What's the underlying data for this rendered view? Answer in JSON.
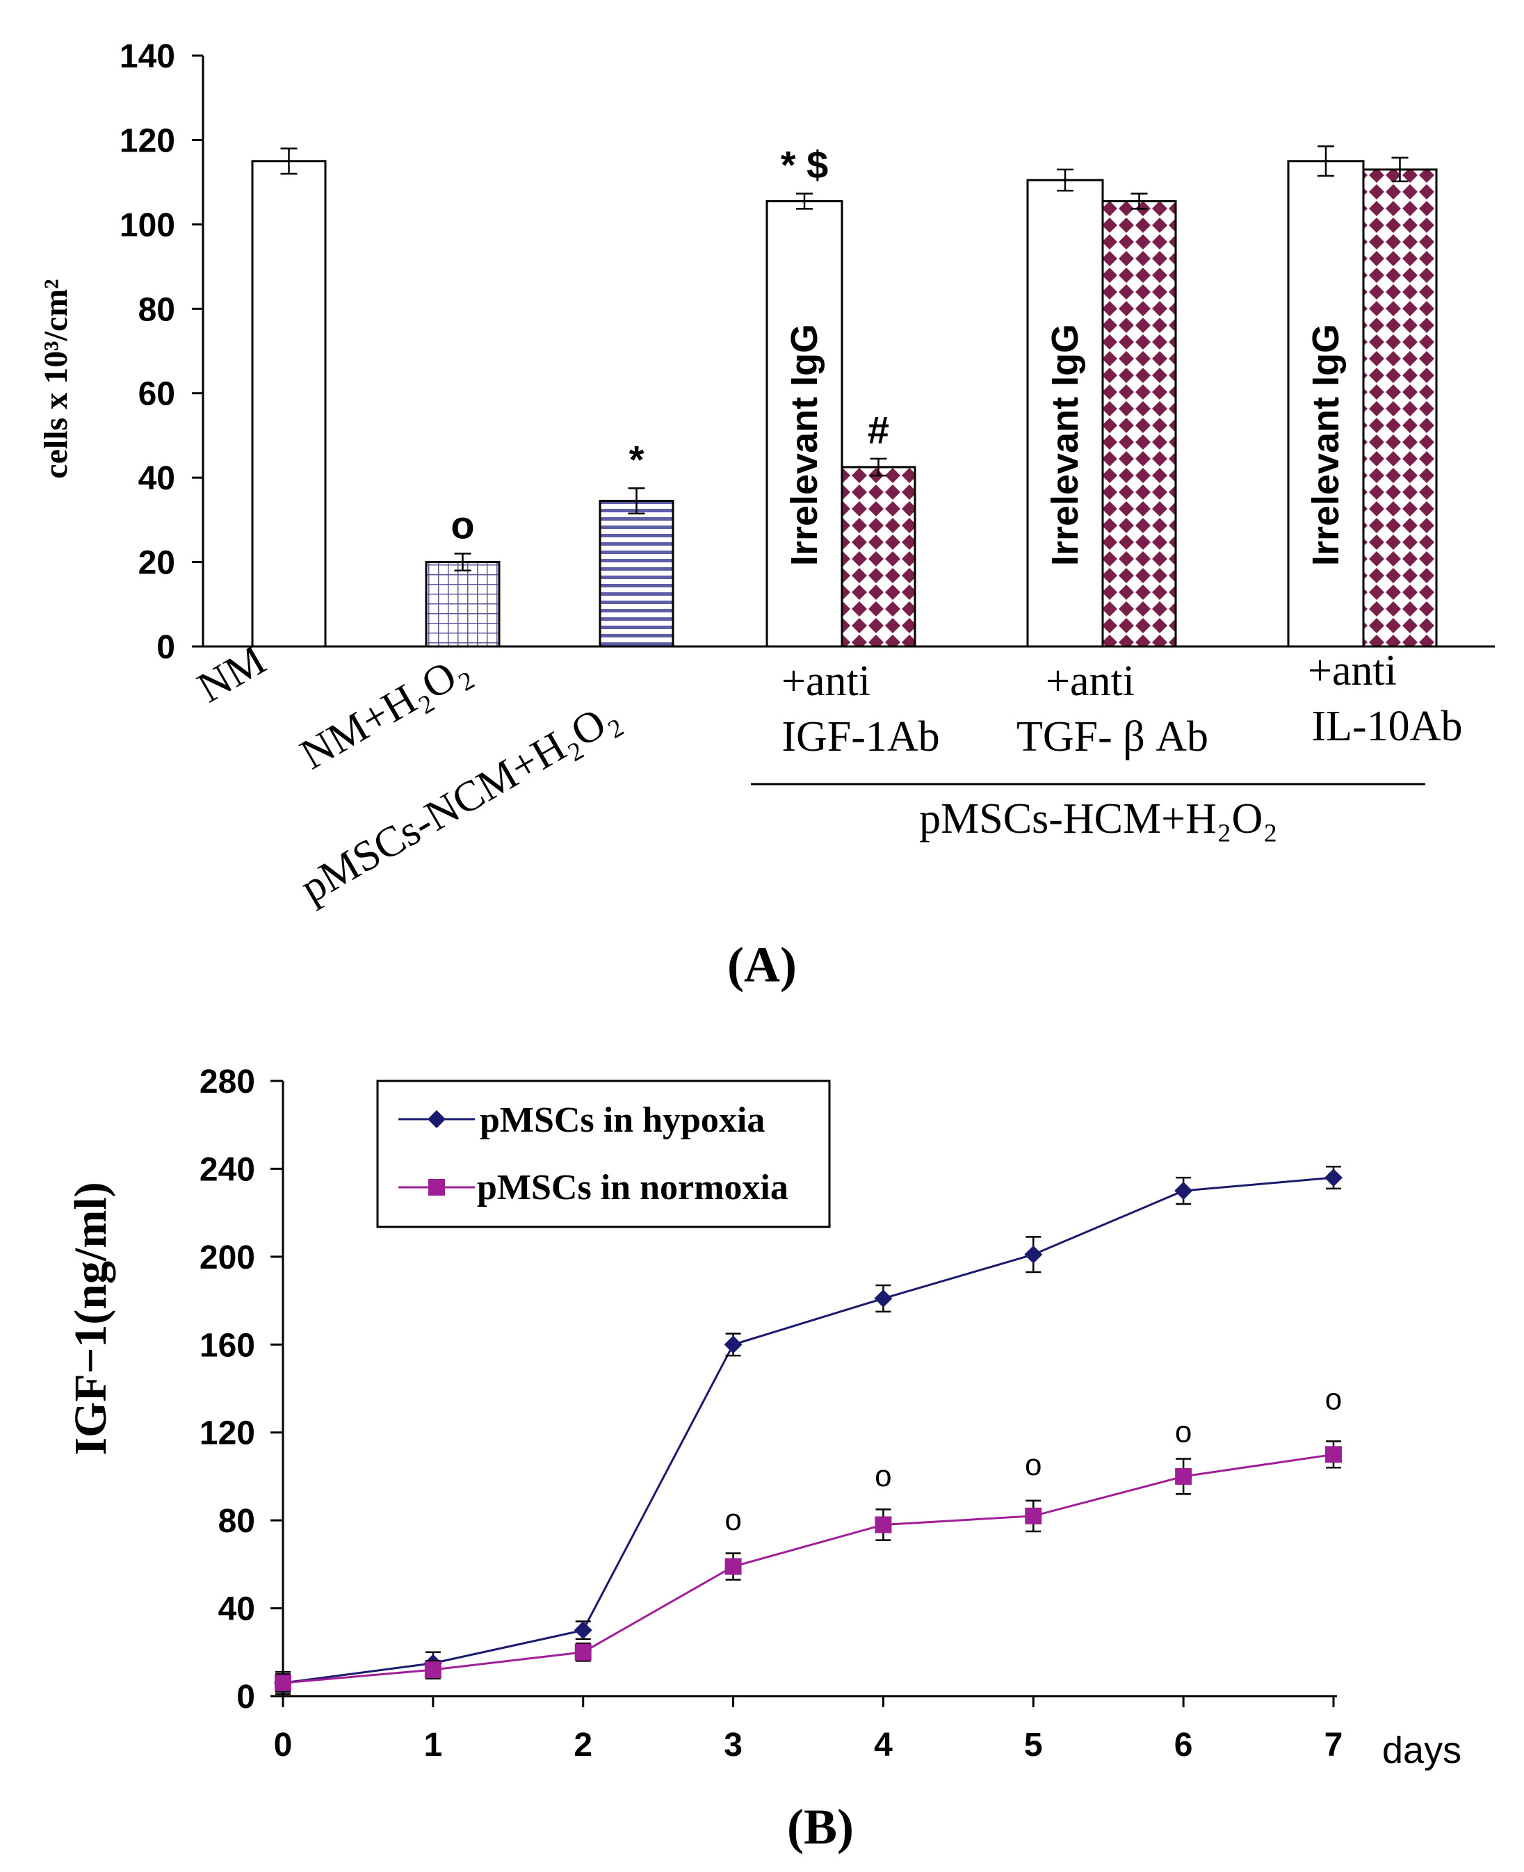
{
  "chart_data": [
    {
      "panel": "A",
      "type": "bar",
      "panel_label": "(A)",
      "ylabel": "cells x 10³/cm²",
      "ylim": [
        0,
        140
      ],
      "yticks": [
        0,
        20,
        40,
        60,
        80,
        100,
        120,
        140
      ],
      "bars": [
        {
          "category": "NM",
          "value": 115,
          "error": 3,
          "pattern": "open",
          "annotation": ""
        },
        {
          "category": "NM+H₂O₂",
          "value": 20,
          "error": 2,
          "pattern": "grid",
          "annotation": "o"
        },
        {
          "category": "pMSCs-NCM+H₂O₂",
          "value": 34.5,
          "error": 3,
          "pattern": "stripes",
          "annotation": "*"
        }
      ],
      "groups": [
        {
          "label_line1": "+anti",
          "label_line2": "IGF-1Ab",
          "igg": {
            "label": "Irrelevant IgG",
            "value": 105.5,
            "error": 1.8,
            "annotation": "* $"
          },
          "antibody": {
            "value": 42.5,
            "error": 2,
            "annotation": "#"
          }
        },
        {
          "label_line1": "+anti",
          "label_line2": "TGF- β Ab",
          "igg": {
            "label": "Irrelevant IgG",
            "value": 110.5,
            "error": 2.5,
            "annotation": ""
          },
          "antibody": {
            "value": 105.5,
            "error": 1.8,
            "annotation": ""
          }
        },
        {
          "label_line1": "+anti",
          "label_line2": "IL-10Ab",
          "igg": {
            "label": "Irrelevant IgG",
            "value": 115,
            "error": 3.5,
            "annotation": ""
          },
          "antibody": {
            "value": 113,
            "error": 2.8,
            "annotation": ""
          }
        }
      ],
      "group_bracket_label": "pMSCs-HCM+H₂O₂",
      "colors": {
        "antibody_fill": "#7a1f4a"
      }
    },
    {
      "panel": "B",
      "type": "line",
      "panel_label": "(B)",
      "ylabel": "IGF−1(ng/ml)",
      "xlabel": "days",
      "x": [
        0,
        1,
        2,
        3,
        4,
        5,
        6,
        7
      ],
      "ylim": [
        0,
        280
      ],
      "yticks": [
        0,
        40,
        80,
        120,
        160,
        200,
        240,
        280
      ],
      "series": [
        {
          "name": "pMSCs in hypoxia",
          "color": "#1a1a6e",
          "marker": "diamond",
          "values": [
            6,
            15,
            30,
            160,
            181,
            201,
            230,
            236
          ],
          "errors": [
            5,
            5,
            4,
            5,
            6,
            8,
            6,
            5
          ]
        },
        {
          "name": "pMSCs in normoxia",
          "color": "#a01e96",
          "marker": "square",
          "values": [
            6,
            12,
            20,
            59,
            78,
            82,
            100,
            110
          ],
          "errors": [
            4,
            4,
            4,
            6,
            7,
            7,
            8,
            6
          ]
        }
      ],
      "annotations": [
        {
          "x": 3,
          "y": 80,
          "text": "o"
        },
        {
          "x": 4,
          "y": 100,
          "text": "o"
        },
        {
          "x": 5,
          "y": 105,
          "text": "o"
        },
        {
          "x": 6,
          "y": 120,
          "text": "o"
        },
        {
          "x": 7,
          "y": 135,
          "text": "o"
        }
      ]
    }
  ]
}
